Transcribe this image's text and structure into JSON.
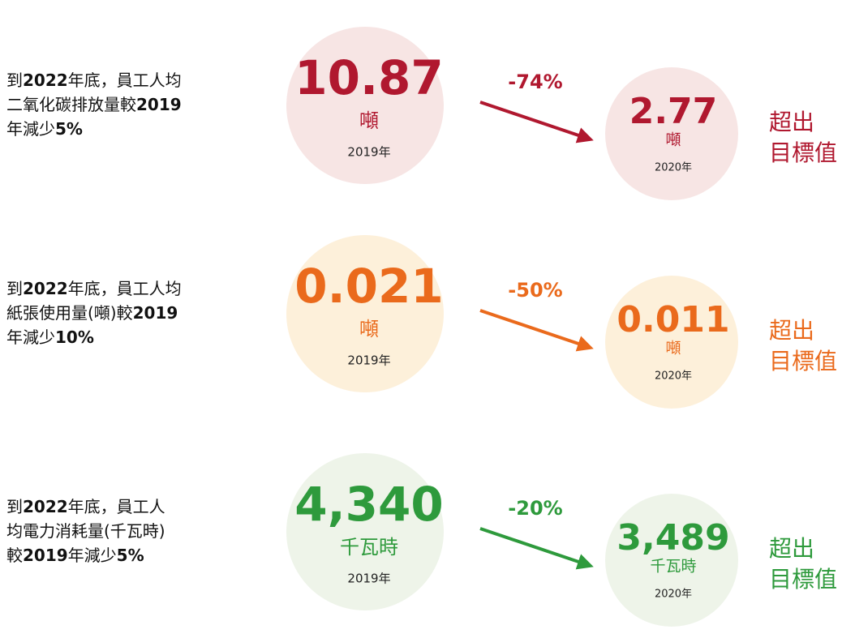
{
  "rows": [
    {
      "color": "#b0182f",
      "circle": "#f7e5e4",
      "description": [
        [
          {
            "text": "到",
            "bold": false
          },
          {
            "text": "2022",
            "bold": true
          },
          {
            "text": "年底，員工人均",
            "bold": false
          }
        ],
        [
          {
            "text": "二氧化碳排放量較",
            "bold": false
          },
          {
            "text": "2019",
            "bold": true
          }
        ],
        [
          {
            "text": "年減少",
            "bold": false
          },
          {
            "text": "5%",
            "bold": true
          }
        ]
      ],
      "before": {
        "value": "10.87",
        "unit": "噸",
        "year": "2019年"
      },
      "change": "-74%",
      "after": {
        "value": "2.77",
        "unit": "噸",
        "year": "2020年"
      },
      "status": [
        "超出",
        "目標值"
      ]
    },
    {
      "color": "#ea6a1c",
      "circle": "#fdf0da",
      "description": [
        [
          {
            "text": "到",
            "bold": false
          },
          {
            "text": "2022",
            "bold": true
          },
          {
            "text": "年底，員工人均",
            "bold": false
          }
        ],
        [
          {
            "text": "紙張使用量(噸)較",
            "bold": false
          },
          {
            "text": "2019",
            "bold": true
          }
        ],
        [
          {
            "text": "年減少",
            "bold": false
          },
          {
            "text": "10%",
            "bold": true
          }
        ]
      ],
      "before": {
        "value": "0.021",
        "unit": "噸",
        "year": "2019年"
      },
      "change": "-50%",
      "after": {
        "value": "0.011",
        "unit": "噸",
        "year": "2020年"
      },
      "status": [
        "超出",
        "目標值"
      ]
    },
    {
      "color": "#2e9a3c",
      "circle": "#eef4e9",
      "description": [
        [
          {
            "text": "到",
            "bold": false
          },
          {
            "text": "2022",
            "bold": true
          },
          {
            "text": "年底，員工人",
            "bold": false
          }
        ],
        [
          {
            "text": "均電力消耗量(千瓦時)",
            "bold": false
          }
        ],
        [
          {
            "text": "較",
            "bold": false
          },
          {
            "text": "2019",
            "bold": true
          },
          {
            "text": "年減少",
            "bold": false
          },
          {
            "text": "5%",
            "bold": true
          }
        ]
      ],
      "before": {
        "value": "4,340",
        "unit": "千瓦時",
        "year": "2019年"
      },
      "change": "-20%",
      "after": {
        "value": "3,489",
        "unit": "千瓦時",
        "year": "2020年"
      },
      "status": [
        "超出",
        "目標值"
      ]
    }
  ]
}
